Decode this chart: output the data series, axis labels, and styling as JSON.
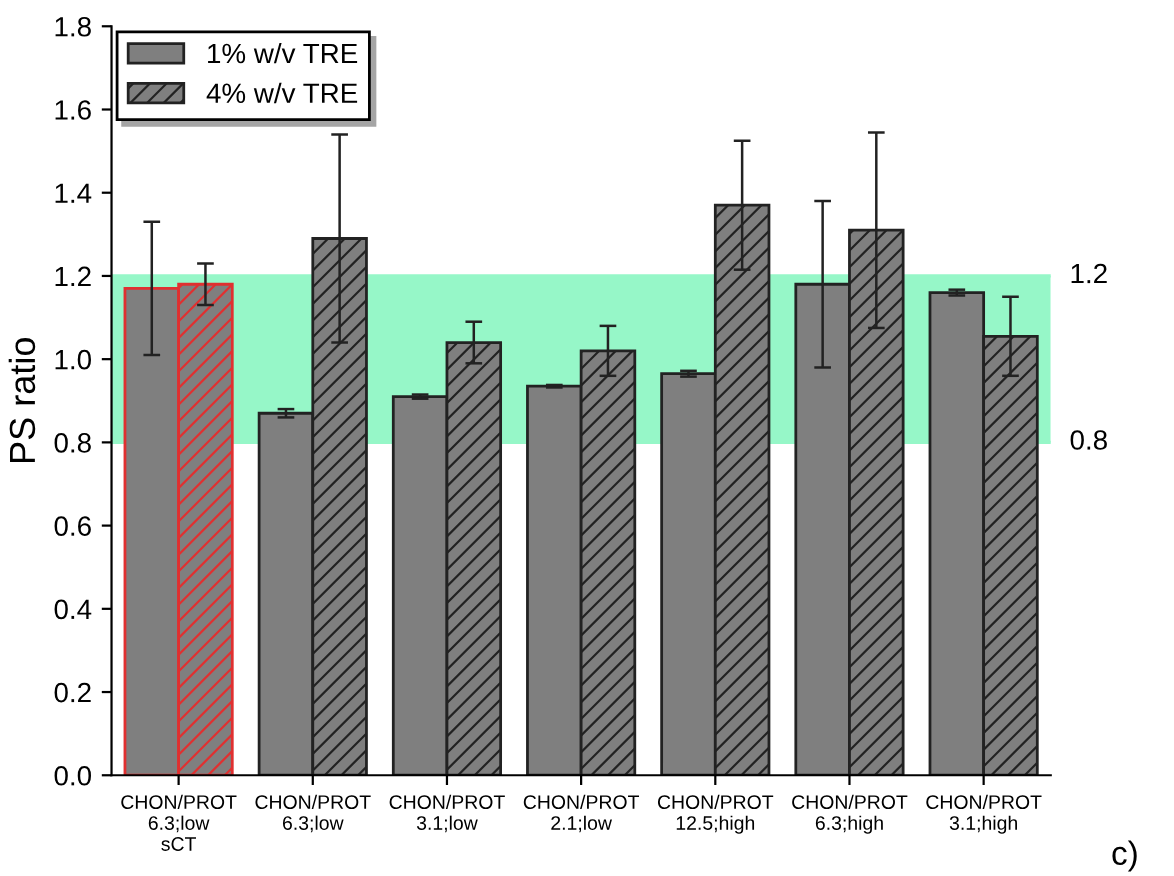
{
  "chart_data": {
    "type": "bar",
    "ylabel": "PS ratio",
    "categories": [
      "CHON/PROT\n6.3;low\nsCT",
      "CHON/PROT\n6.3;low",
      "CHON/PROT\n3.1;low",
      "CHON/PROT\n2.1;low",
      "CHON/PROT\n12.5;high",
      "CHON/PROT\n6.3;high",
      "CHON/PROT\n3.1;high"
    ],
    "series": [
      {
        "name": "1% w/v TRE",
        "color": "#7f7f7f",
        "colors": [
          "#e03030",
          "#222222",
          "#222222",
          "#222222",
          "#222222",
          "#222222",
          "#222222"
        ],
        "values": [
          1.17,
          0.87,
          0.91,
          0.935,
          0.965,
          1.18,
          1.16
        ],
        "errors": [
          0.16,
          0.01,
          0.005,
          0.003,
          0.007,
          0.2,
          0.007
        ]
      },
      {
        "name": "4% w/v TRE",
        "color": "#7f7f7f",
        "colors": [
          "#e03030",
          "#222222",
          "#222222",
          "#222222",
          "#222222",
          "#222222",
          "#222222"
        ],
        "values": [
          1.18,
          1.29,
          1.04,
          1.02,
          1.37,
          1.31,
          1.055
        ],
        "errors": [
          0.05,
          0.25,
          0.05,
          0.06,
          0.155,
          0.235,
          0.095
        ]
      }
    ],
    "ylim": [
      0,
      1.8
    ],
    "yticks": [
      {
        "value": 0,
        "label": "0.0"
      },
      0.2,
      0.4,
      0.6,
      0.8,
      {
        "value": 1.0,
        "label": "1.0"
      },
      1.2,
      1.4,
      1.6,
      1.8
    ],
    "bands": [
      {
        "axis": "y",
        "from": 0.8,
        "to": 1.2,
        "color": "#96f7c8"
      }
    ],
    "ref_lines": [
      {
        "axis": "y",
        "value": 1.2,
        "label": "1.2",
        "color": "#96f7c8"
      },
      {
        "axis": "y",
        "value": 0.8,
        "label": "0.8",
        "color": "#96f7c8"
      }
    ],
    "annotations": [
      "c)"
    ],
    "legend": "top left",
    "grid": false
  }
}
